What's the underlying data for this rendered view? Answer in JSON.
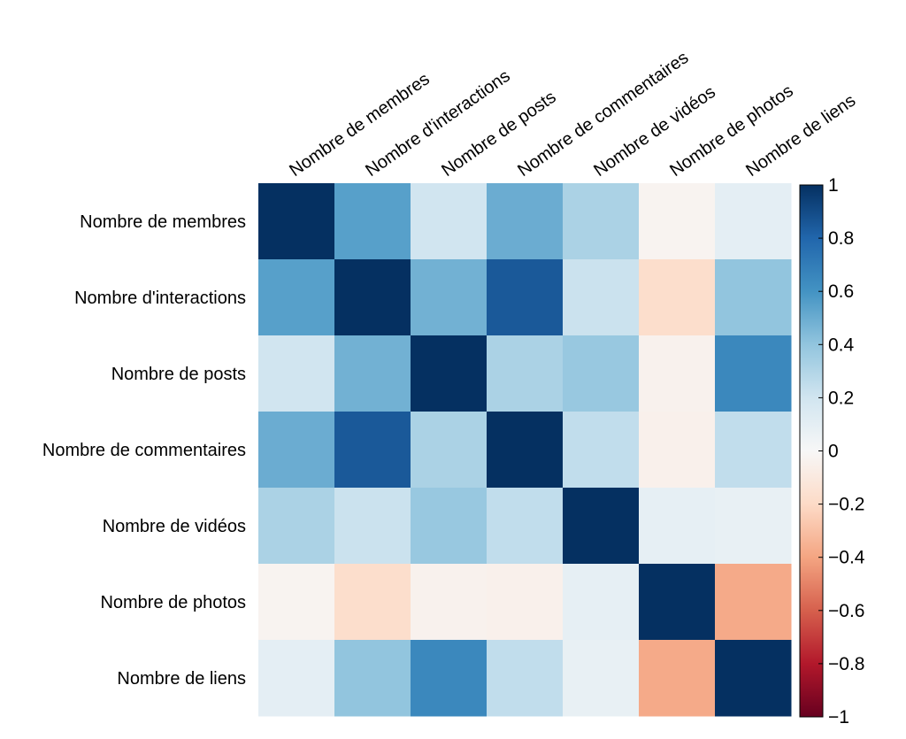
{
  "chart_data": {
    "type": "heatmap",
    "title": "",
    "variables": [
      "Nombre de membres",
      "Nombre d'interactions",
      "Nombre de posts",
      "Nombre de commentaires",
      "Nombre de vidéos",
      "Nombre de photos",
      "Nombre de liens"
    ],
    "row_labels": [
      "Nombre de membres",
      "Nombre d'interactions",
      "Nombre de posts ",
      "Nombre de commentaires",
      "Nombre de vidéos",
      "Nombre de photos",
      "Nombre de liens"
    ],
    "matrix": [
      [
        1.0,
        0.55,
        0.2,
        0.5,
        0.32,
        -0.03,
        0.1
      ],
      [
        0.55,
        1.0,
        0.48,
        0.85,
        0.22,
        -0.18,
        0.4
      ],
      [
        0.2,
        0.48,
        1.0,
        0.32,
        0.38,
        -0.04,
        0.65
      ],
      [
        0.5,
        0.85,
        0.32,
        1.0,
        0.25,
        -0.05,
        0.25
      ],
      [
        0.32,
        0.22,
        0.38,
        0.25,
        1.0,
        0.09,
        0.08
      ],
      [
        -0.03,
        -0.18,
        -0.04,
        -0.05,
        0.09,
        1.0,
        -0.38
      ],
      [
        0.1,
        0.4,
        0.65,
        0.25,
        0.08,
        -0.38,
        1.0
      ]
    ],
    "colorbar": {
      "range": [
        -1,
        1
      ],
      "ticks": [
        "1",
        "0.8",
        "0.6",
        "0.4",
        "0.2",
        "0",
        "−0.2",
        "−0.4",
        "−0.6",
        "−0.8",
        "−1"
      ],
      "tick_values": [
        1,
        0.8,
        0.6,
        0.4,
        0.2,
        0,
        -0.2,
        -0.4,
        -0.6,
        -0.8,
        -1
      ],
      "colormap": "RdBu",
      "color_stops": [
        "#67001f",
        "#b2182b",
        "#d6604d",
        "#f4a582",
        "#fddbc7",
        "#f7f7f7",
        "#d1e5f0",
        "#92c5de",
        "#4393c3",
        "#2166ac",
        "#053061"
      ]
    }
  }
}
